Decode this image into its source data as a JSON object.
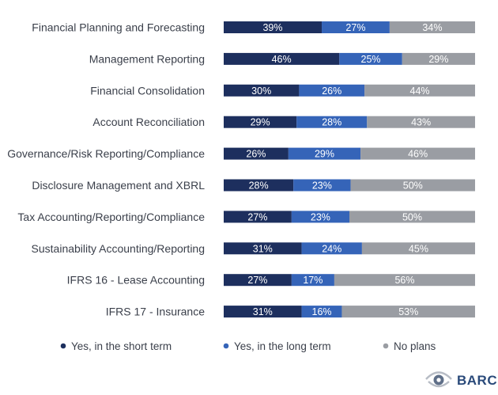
{
  "chart_data": {
    "type": "bar",
    "orientation": "horizontal",
    "stacked": true,
    "normalized_percent": true,
    "categories": [
      "Financial Planning and Forecasting",
      "Management Reporting",
      "Financial Consolidation",
      "Account Reconciliation",
      "Governance/Risk Reporting/Compliance",
      "Disclosure Management and XBRL",
      "Tax Accounting/Reporting/Compliance",
      "Sustainability Accounting/Reporting",
      "IFRS 16 - Lease Accounting",
      "IFRS 17 - Insurance"
    ],
    "series": [
      {
        "name": "Yes, in the short term",
        "color": "#1d2f5e",
        "values": [
          39,
          46,
          30,
          29,
          26,
          28,
          27,
          31,
          27,
          31
        ]
      },
      {
        "name": "Yes, in the long term",
        "color": "#3564b8",
        "values": [
          27,
          25,
          26,
          28,
          29,
          23,
          23,
          24,
          17,
          16
        ]
      },
      {
        "name": "No plans",
        "color": "#9a9da3",
        "values": [
          34,
          29,
          44,
          43,
          46,
          50,
          50,
          45,
          56,
          53
        ]
      }
    ],
    "value_suffix": "%",
    "legend_position": "bottom",
    "grid": false
  },
  "branding": {
    "logo_text": "BARC",
    "logo_icon": "eye-logo-icon"
  }
}
